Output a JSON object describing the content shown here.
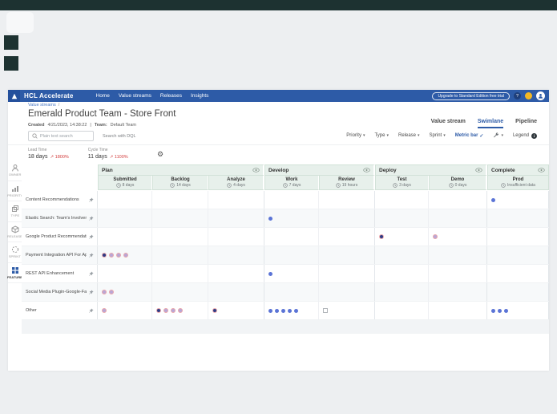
{
  "glyphs": {
    "caret": "▾",
    "check": "✓",
    "help": "?",
    "info": "i",
    "arrow_up": "↗",
    "gear": "⚙",
    "breadcrumb_sep": "/",
    "meta_sep": "|"
  },
  "nav": {
    "brand": "HCL Accelerate",
    "items": [
      {
        "label": "Home"
      },
      {
        "label": "Value streams"
      },
      {
        "label": "Releases"
      },
      {
        "label": "Insights"
      }
    ],
    "upgrade_button": "Upgrade to Standard Edition free trial"
  },
  "breadcrumb": {
    "item": "Value streams"
  },
  "page": {
    "title": "Emerald Product Team - Store Front",
    "created_label": "Created",
    "created_value": "4/21/2023, 14:38:22",
    "team_label": "Team:",
    "team_value": "Default Team"
  },
  "view_tabs": [
    {
      "label": "Value stream",
      "active": false
    },
    {
      "label": "Swimlane",
      "active": true
    },
    {
      "label": "Pipeline",
      "active": false
    }
  ],
  "toolbar": {
    "search_placeholder": "Plain text search",
    "dql_label": "Search with DQL",
    "filters": [
      {
        "label": "Priority"
      },
      {
        "label": "Type"
      },
      {
        "label": "Release"
      },
      {
        "label": "Sprint"
      }
    ],
    "metric_bar_label": "Metric bar",
    "legend_label": "Legend"
  },
  "metrics": [
    {
      "label": "Lead Time",
      "value": "18 days",
      "delta": "1800%"
    },
    {
      "label": "Cycle Time",
      "value": "11 days",
      "delta": "1100%"
    }
  ],
  "sidebar": [
    {
      "label": "OWNER",
      "icon": "person",
      "active": false
    },
    {
      "label": "PRIORITY",
      "icon": "priority",
      "active": false
    },
    {
      "label": "TYPE",
      "icon": "type",
      "active": false
    },
    {
      "label": "RELEASE",
      "icon": "release",
      "active": false
    },
    {
      "label": "SPRINT",
      "icon": "sprint",
      "active": false
    },
    {
      "label": "FEATURE",
      "icon": "feature",
      "active": true
    }
  ],
  "board": {
    "phases": [
      {
        "name": "Plan",
        "stage_count": 3
      },
      {
        "name": "Develop",
        "stage_count": 2
      },
      {
        "name": "Deploy",
        "stage_count": 2
      },
      {
        "name": "Complete",
        "stage_count": 1
      }
    ],
    "stages": [
      {
        "name": "Submitted",
        "duration": "8 days"
      },
      {
        "name": "Backlog",
        "duration": "14 days"
      },
      {
        "name": "Analyze",
        "duration": "4 days"
      },
      {
        "name": "Work",
        "duration": "7 days"
      },
      {
        "name": "Review",
        "duration": "19 hours"
      },
      {
        "name": "Test",
        "duration": "3 days"
      },
      {
        "name": "Demo",
        "duration": "0 days"
      },
      {
        "name": "Prod",
        "duration": "Insufficient data"
      }
    ],
    "rows": [
      {
        "label": "Content Recommendations",
        "pinned": true,
        "dots": [
          [],
          [],
          [],
          [],
          [],
          [],
          [],
          [
            "blue"
          ]
        ]
      },
      {
        "label": "Elastic Search: Team's Involvement Wit",
        "pinned": true,
        "dots": [
          [],
          [],
          [],
          [
            "blue"
          ],
          [],
          [],
          [],
          []
        ]
      },
      {
        "label": "Google Product Recommendations AI",
        "pinned": true,
        "dots": [
          [],
          [],
          [],
          [],
          [],
          [
            "navy"
          ],
          [
            "lavender"
          ],
          []
        ]
      },
      {
        "label": "Payment Integration API For Apple Pay",
        "pinned": true,
        "dots": [
          [
            "navy",
            "lavender",
            "lavender",
            "lavender"
          ],
          [],
          [],
          [],
          [],
          [],
          [],
          []
        ]
      },
      {
        "label": "REST API Enhancement",
        "pinned": true,
        "dots": [
          [],
          [],
          [],
          [
            "blue"
          ],
          [],
          [],
          [],
          []
        ]
      },
      {
        "label": "Social Media Plugin-Google-Facebook-I",
        "pinned": true,
        "dots": [
          [
            "lavender",
            "lavender"
          ],
          [],
          [],
          [],
          [],
          [],
          [],
          []
        ]
      },
      {
        "label": "Other",
        "pinned": true,
        "dots": [
          [
            "lavender"
          ],
          [
            "navy",
            "lavender",
            "lavender",
            "lavender"
          ],
          [
            "navy"
          ],
          [
            "blue",
            "blue",
            "blue",
            "blue",
            "blue"
          ],
          [
            "square"
          ],
          [],
          [],
          [
            "blue",
            "blue",
            "blue"
          ]
        ]
      }
    ],
    "colors": {
      "blue": "#5b74d6",
      "navy": "#2f3c85",
      "lavender": "#b9a6d6",
      "ring": "#e9a6ac"
    }
  }
}
